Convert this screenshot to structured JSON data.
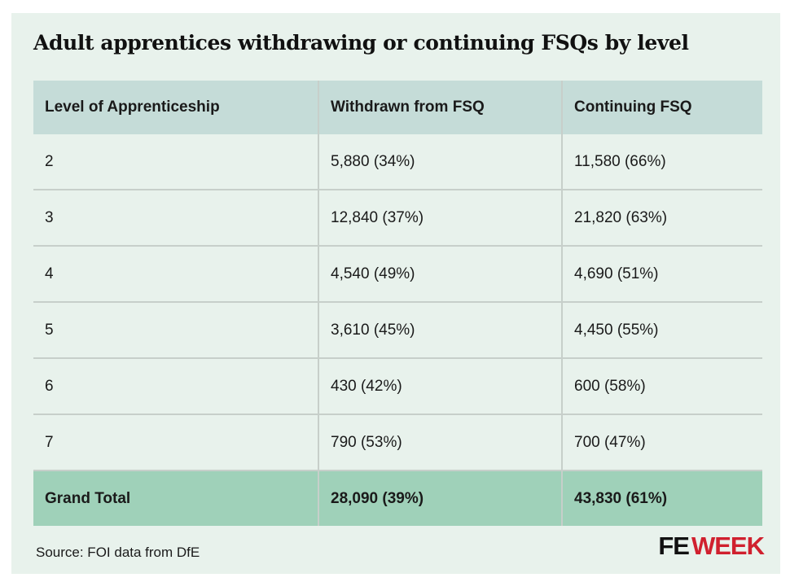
{
  "title": "Adult apprentices withdrawing or continuing FSQs by level",
  "headers": [
    "Level of Apprenticeship",
    "Withdrawn from FSQ",
    "Continuing FSQ"
  ],
  "rows": [
    [
      "2",
      "5,880 (34%)",
      "11,580 (66%)"
    ],
    [
      "3",
      "12,840 (37%)",
      "21,820 (63%)"
    ],
    [
      "4",
      "4,540 (49%)",
      "4,690 (51%)"
    ],
    [
      "5",
      "3,610 (45%)",
      "4,450 (55%)"
    ],
    [
      "6",
      "430 (42%)",
      "600 (58%)"
    ],
    [
      "7",
      "790 (53%)",
      "700 (47%)"
    ]
  ],
  "total": [
    "Grand Total",
    "28,090 (39%)",
    "43,830 (61%)"
  ],
  "source": "Source: FOI data from DfE",
  "logo": {
    "part1": "FE",
    "part2": "WEEK"
  },
  "colors": {
    "background": "#e8f2ec",
    "header_fill": "#c5dcd8",
    "total_fill": "#9fd1b9",
    "logo_red": "#d0202e"
  },
  "chart_data": {
    "type": "table",
    "title": "Adult apprentices withdrawing or continuing FSQs by level",
    "columns": [
      "Level of Apprenticeship",
      "Withdrawn from FSQ",
      "Continuing FSQ"
    ],
    "levels": [
      "2",
      "3",
      "4",
      "5",
      "6",
      "7"
    ],
    "series": [
      {
        "name": "Withdrawn from FSQ",
        "values": [
          5880,
          12840,
          4540,
          3610,
          430,
          790
        ],
        "percentages": [
          34,
          37,
          49,
          45,
          42,
          53
        ]
      },
      {
        "name": "Continuing FSQ",
        "values": [
          11580,
          21820,
          4690,
          4450,
          600,
          700
        ],
        "percentages": [
          66,
          63,
          51,
          55,
          58,
          47
        ]
      }
    ],
    "totals": {
      "Withdrawn from FSQ": {
        "value": 28090,
        "percentage": 39
      },
      "Continuing FSQ": {
        "value": 43830,
        "percentage": 61
      }
    }
  }
}
